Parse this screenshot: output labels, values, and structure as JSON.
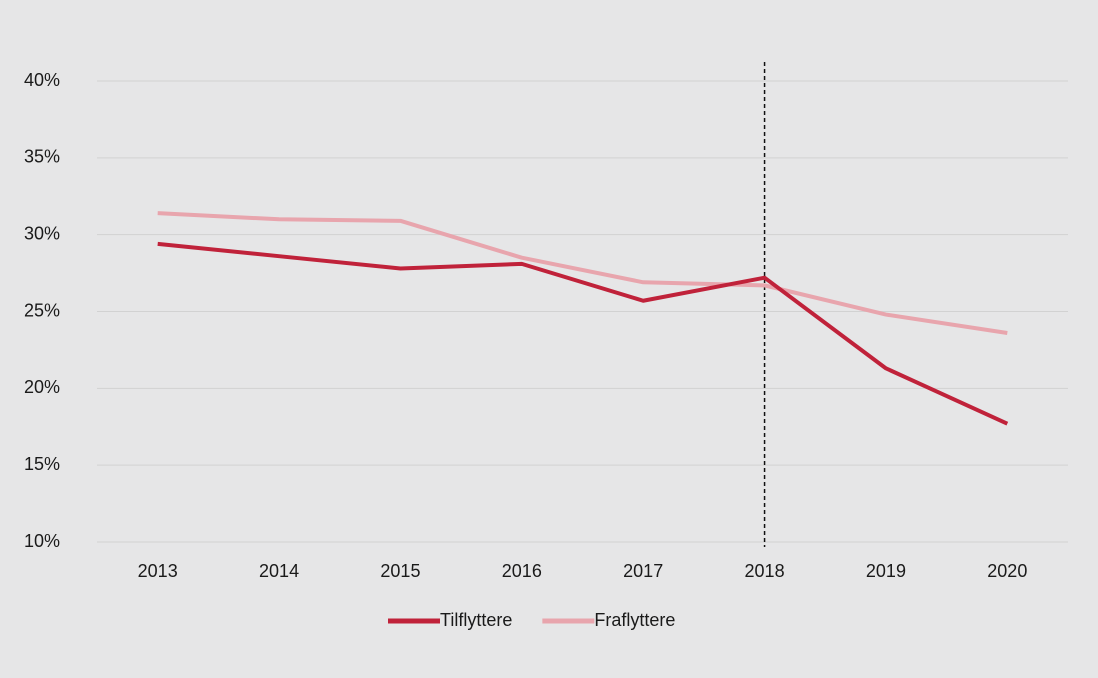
{
  "chart_data": {
    "type": "line",
    "categories": [
      "2013",
      "2014",
      "2015",
      "2016",
      "2017",
      "2018",
      "2019",
      "2020"
    ],
    "series": [
      {
        "name": "Tilflyttere",
        "color": "#c0223a",
        "values": [
          29.4,
          28.6,
          27.8,
          28.1,
          25.7,
          27.2,
          21.3,
          17.7
        ]
      },
      {
        "name": "Fraflyttere",
        "color": "#e8a5ad",
        "values": [
          31.4,
          31.0,
          30.9,
          28.5,
          26.9,
          26.7,
          24.8,
          23.6
        ]
      }
    ],
    "ylim": [
      10,
      40
    ],
    "yticks": [
      {
        "value": 10,
        "label": "10%"
      },
      {
        "value": 15,
        "label": "15%"
      },
      {
        "value": 20,
        "label": "20%"
      },
      {
        "value": 25,
        "label": "25%"
      },
      {
        "value": 30,
        "label": "30%"
      },
      {
        "value": 35,
        "label": "35%"
      },
      {
        "value": 40,
        "label": "40%"
      }
    ],
    "grid": true,
    "vline_category": "2018",
    "legend": "bottom"
  }
}
